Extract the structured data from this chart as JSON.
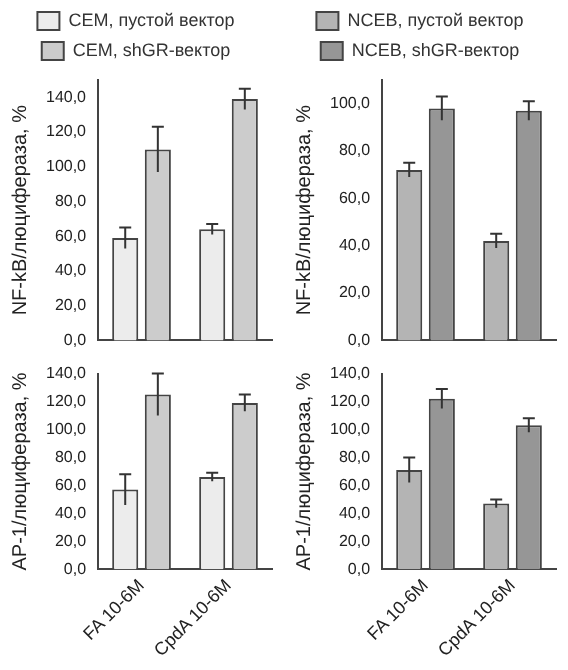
{
  "chart_data": [
    {
      "type": "bar",
      "ylabel": "NF-kB/люцифераза, %",
      "categories": [
        null,
        null
      ],
      "tick_labels": "y",
      "legend": "top",
      "grid": false,
      "ylim": [
        0,
        150
      ],
      "yticks": [
        {
          "value": 0,
          "label": "0,0"
        },
        {
          "value": 20,
          "label": "20,0"
        },
        {
          "value": 40,
          "label": "40,0"
        },
        {
          "value": 60,
          "label": "60,0"
        },
        {
          "value": 80,
          "label": "80,0"
        },
        {
          "value": 100,
          "label": "100,0"
        },
        {
          "value": 120,
          "label": "120,0"
        },
        {
          "value": 140,
          "label": "140,0"
        }
      ],
      "series": [
        {
          "name": "CEM, пустой вектор",
          "color": "#ececec",
          "values": [
            59,
            64
          ],
          "errors": [
            6,
            3
          ]
        },
        {
          "name": "CEM, shGR-вектор",
          "color": "#cccccc",
          "values": [
            110,
            139
          ],
          "errors": [
            13,
            6
          ]
        }
      ]
    },
    {
      "type": "bar",
      "ylabel": "NF-kB/люцифераза, %",
      "categories": [
        null,
        null
      ],
      "tick_labels": "y",
      "legend": "top",
      "grid": false,
      "ylim": [
        0,
        110
      ],
      "yticks": [
        {
          "value": 0,
          "label": "0,0"
        },
        {
          "value": 20,
          "label": "20,0"
        },
        {
          "value": 40,
          "label": "40,0"
        },
        {
          "value": 60,
          "label": "60,0"
        },
        {
          "value": 80,
          "label": "80,0"
        },
        {
          "value": 100,
          "label": "100,0"
        }
      ],
      "series": [
        {
          "name": "NCEB, пустой вектор",
          "color": "#b4b4b4",
          "values": [
            72,
            42
          ],
          "errors": [
            3,
            3
          ]
        },
        {
          "name": "NCEB, shGR-вектор",
          "color": "#969696",
          "values": [
            98,
            97
          ],
          "errors": [
            5,
            4
          ]
        }
      ]
    },
    {
      "type": "bar",
      "ylabel": "AP-1/люцифераза, %",
      "categories": [
        "FA 10-6M",
        "CpdA 10-6M"
      ],
      "grid": false,
      "ylim": [
        0,
        140
      ],
      "yticks": [
        {
          "value": 0,
          "label": "0,0"
        },
        {
          "value": 20,
          "label": "20,0"
        },
        {
          "value": 40,
          "label": "40,0"
        },
        {
          "value": 60,
          "label": "60,0"
        },
        {
          "value": 80,
          "label": "80,0"
        },
        {
          "value": 100,
          "label": "100,0"
        },
        {
          "value": 120,
          "label": "120,0"
        },
        {
          "value": 140,
          "label": "140,0"
        }
      ],
      "series": [
        {
          "color": "#ececec",
          "values": [
            57,
            66
          ],
          "errors": [
            11,
            3
          ]
        },
        {
          "color": "#cccccc",
          "values": [
            125,
            119
          ],
          "errors": [
            15,
            6
          ]
        }
      ]
    },
    {
      "type": "bar",
      "ylabel": "AP-1/люцифераза, %",
      "categories": [
        "FA 10-6M",
        "CpdA 10-6M"
      ],
      "grid": false,
      "ylim": [
        0,
        140
      ],
      "yticks": [
        {
          "value": 0,
          "label": "0,0"
        },
        {
          "value": 20,
          "label": "20,0"
        },
        {
          "value": 40,
          "label": "40,0"
        },
        {
          "value": 60,
          "label": "60,0"
        },
        {
          "value": 80,
          "label": "80,0"
        },
        {
          "value": 100,
          "label": "100,0"
        },
        {
          "value": 120,
          "label": "120,0"
        },
        {
          "value": 140,
          "label": "140,0"
        }
      ],
      "series": [
        {
          "color": "#b4b4b4",
          "values": [
            71,
            47
          ],
          "errors": [
            9,
            3
          ]
        },
        {
          "color": "#969696",
          "values": [
            122,
            103
          ],
          "errors": [
            7,
            5
          ]
        }
      ]
    }
  ]
}
